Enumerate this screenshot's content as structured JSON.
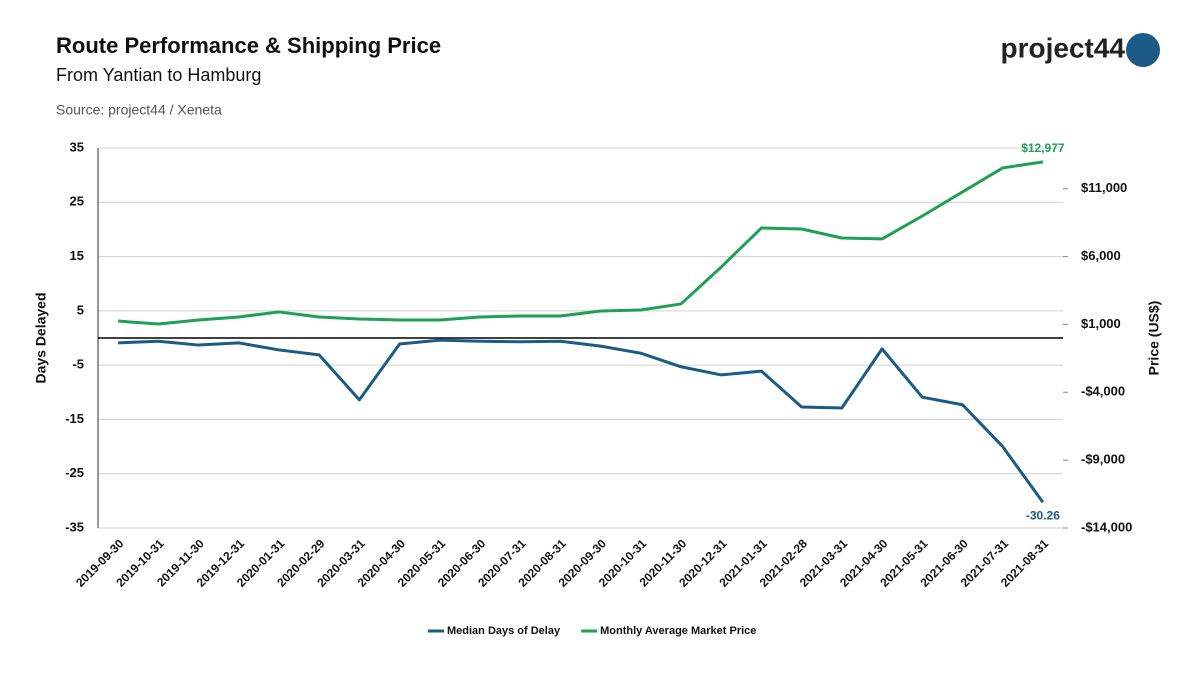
{
  "chart_data": {
    "type": "line",
    "title": "Route Performance & Shipping Price",
    "subtitle": "From Yantian to Hamburg",
    "source": "Source: project44 / Xeneta",
    "logo": "project44",
    "ylabel": "Days Delayed",
    "y2label": "Price (US$)",
    "categories": [
      "2019-09-30",
      "2019-10-31",
      "2019-11-30",
      "2019-12-31",
      "2020-01-31",
      "2020-02-29",
      "2020-03-31",
      "2020-04-30",
      "2020-05-31",
      "2020-06-30",
      "2020-07-31",
      "2020-08-31",
      "2020-09-30",
      "2020-10-31",
      "2020-11-30",
      "2020-12-31",
      "2021-01-31",
      "2021-02-28",
      "2021-03-31",
      "2021-04-30",
      "2021-05-31",
      "2021-06-30",
      "2021-07-31",
      "2021-08-31"
    ],
    "series": [
      {
        "name": "Median Days of Delay",
        "color": "#1b5b85",
        "axis": "y",
        "values": [
          -0.9,
          -0.6,
          -1.3,
          -0.9,
          -2.2,
          -3.1,
          -11.4,
          -1.1,
          -0.4,
          -0.6,
          -0.7,
          -0.6,
          -1.5,
          -2.8,
          -5.3,
          -6.8,
          -6.1,
          -12.7,
          -12.9,
          -2,
          -10.9,
          -12.3,
          -20,
          -30.26
        ]
      },
      {
        "name": "Monthly Average Market Price",
        "color": "#1fa055",
        "axis": "y2",
        "values": [
          1250,
          1030,
          1330,
          1550,
          1920,
          1550,
          1400,
          1330,
          1330,
          1550,
          1620,
          1620,
          1990,
          2060,
          2510,
          5230,
          8110,
          8030,
          7370,
          7300,
          8990,
          10760,
          12530,
          12977
        ],
        "value_labels": [
          null,
          null,
          null,
          null,
          null,
          null,
          null,
          null,
          null,
          null,
          null,
          null,
          null,
          null,
          null,
          null,
          null,
          null,
          null,
          null,
          null,
          null,
          null,
          "$12,977"
        ]
      }
    ],
    "ylim": [
      -35,
      35
    ],
    "yticks": [
      -35,
      -25,
      -15,
      -5,
      5,
      15,
      25,
      35
    ],
    "y2lim": [
      -14000,
      14000
    ],
    "y2ticks": [
      {
        "value": -14000,
        "label": "-$14,000"
      },
      {
        "value": -9000,
        "label": "-$9,000"
      },
      {
        "value": -4000,
        "label": "-$4,000"
      },
      {
        "value": 1000,
        "label": "$1,000"
      },
      {
        "value": 6000,
        "label": "$6,000"
      },
      {
        "value": 11000,
        "label": "$11,000"
      }
    ],
    "grid": true,
    "legend": "bottom"
  }
}
